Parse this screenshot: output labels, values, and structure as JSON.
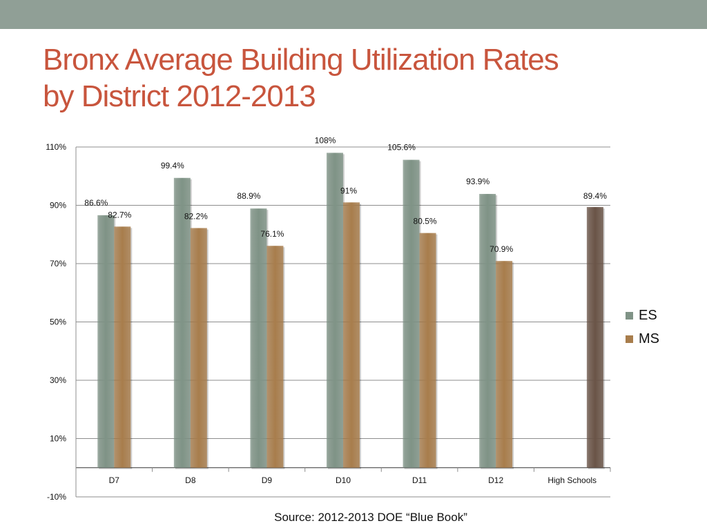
{
  "title": {
    "line1": "Bronx Average Building Utilization Rates",
    "line2": "by District 2012-2013"
  },
  "source": "Source: 2012-2013 DOE “Blue Book”",
  "colors": {
    "es": "#7f9386",
    "ms": "#a87d4c",
    "hs": "#6a5447",
    "band": "#909f96",
    "title": "#c8553d"
  },
  "chart_data": {
    "type": "bar",
    "title": "",
    "xlabel": "",
    "ylabel": "",
    "ylim": [
      -10,
      110
    ],
    "yticks": [
      "110%",
      "90%",
      "70%",
      "50%",
      "30%",
      "10%",
      "-10%"
    ],
    "ytick_values": [
      110,
      90,
      70,
      50,
      30,
      10,
      -10
    ],
    "grid": true,
    "legend_position": "right",
    "categories": [
      "D7",
      "D8",
      "D9",
      "D10",
      "D11",
      "D12",
      "High Schools"
    ],
    "series": [
      {
        "name": "ES",
        "values": [
          86.6,
          99.4,
          88.9,
          108,
          105.6,
          93.9,
          null
        ],
        "labels": [
          "86.6%",
          "99.4%",
          "88.9%",
          "108%",
          "105.6%",
          "93.9%",
          ""
        ]
      },
      {
        "name": "MS",
        "values": [
          82.7,
          82.2,
          76.1,
          91,
          80.5,
          70.9,
          null
        ],
        "labels": [
          "82.7%",
          "82.2%",
          "76.1%",
          "91%",
          "80.5%",
          "70.9%",
          ""
        ]
      },
      {
        "name": "",
        "values": [
          null,
          null,
          null,
          null,
          null,
          null,
          89.4
        ],
        "labels": [
          "",
          "",
          "",
          "",
          "",
          "",
          "89.4%"
        ]
      }
    ]
  }
}
